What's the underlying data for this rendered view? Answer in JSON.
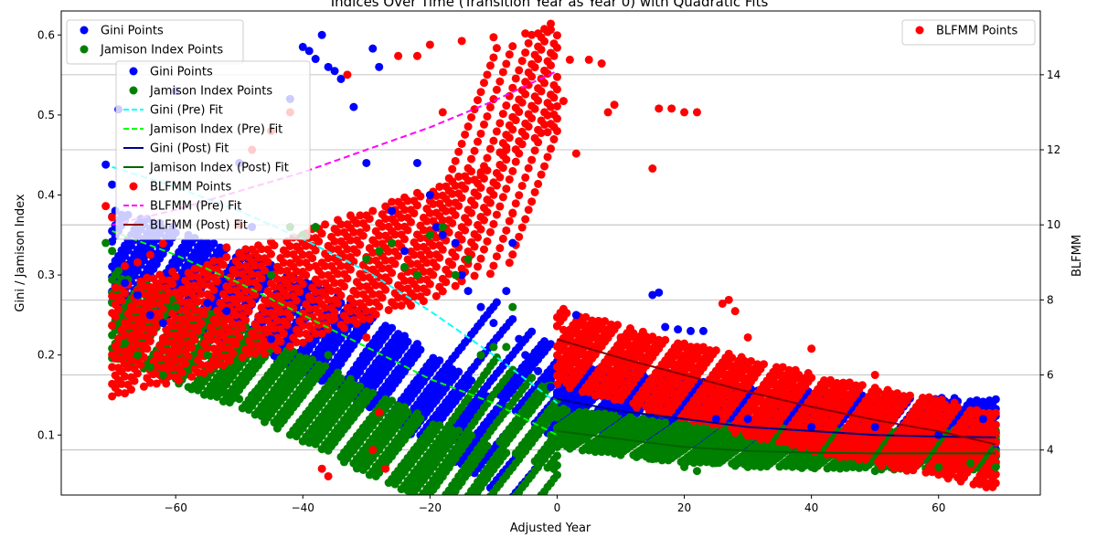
{
  "chart_data": {
    "type": "scatter",
    "title": "Indices Over Time (Transition Year as Year 0) with Quadratic Fits",
    "xlabel": "Adjusted Year",
    "ylabel_left": "Gini / Jamison Index",
    "ylabel_right": "BLFMM",
    "xlim": [
      -78,
      76
    ],
    "ylim_left": [
      0.025,
      0.63
    ],
    "ylim_right": [
      2.8,
      15.7
    ],
    "x_ticks": [
      -60,
      -40,
      -20,
      0,
      20,
      40,
      60
    ],
    "x_tick_labels": [
      "−60",
      "−40",
      "−20",
      "0",
      "20",
      "40",
      "60"
    ],
    "y_left_ticks": [
      0.1,
      0.2,
      0.3,
      0.4,
      0.5,
      0.6
    ],
    "y_left_tick_labels": [
      "0.1",
      "0.2",
      "0.3",
      "0.4",
      "0.5",
      "0.6"
    ],
    "y_right_ticks": [
      4,
      6,
      8,
      10,
      12,
      14
    ],
    "y_right_tick_labels": [
      "4",
      "6",
      "8",
      "10",
      "12",
      "14"
    ],
    "grid": "horizontal lines at right-axis ticks",
    "colors": {
      "gini": "#0000ff",
      "jamison": "#008000",
      "blfmm": "#ff0000",
      "gini_pre_fit": "#00ffff",
      "jamison_pre_fit": "#00ff00",
      "gini_post_fit": "#00008b",
      "jamison_post_fit": "#006400",
      "blfmm_pre_fit": "#ff00ff",
      "blfmm_post_fit": "#8b0000"
    },
    "legend_top_left": {
      "placement": "top-left",
      "entries": [
        {
          "label": "Gini Points",
          "marker": "point",
          "color": "#0000ff"
        },
        {
          "label": "Jamison Index Points",
          "marker": "point",
          "color": "#008000"
        }
      ]
    },
    "legend_top_right": {
      "placement": "top-right",
      "entries": [
        {
          "label": "BLFMM Points",
          "marker": "point",
          "color": "#ff0000"
        }
      ]
    },
    "legend_combined": {
      "placement": "upper-left",
      "entries": [
        {
          "label": "Gini Points",
          "marker": "point",
          "color": "#0000ff"
        },
        {
          "label": "Jamison Index Points",
          "marker": "point",
          "color": "#008000"
        },
        {
          "label": "Gini (Pre) Fit",
          "marker": "dash",
          "color": "#00ffff"
        },
        {
          "label": "Jamison Index (Pre) Fit",
          "marker": "dash",
          "color": "#00ff00"
        },
        {
          "label": "Gini (Post) Fit",
          "marker": "line",
          "color": "#00008b"
        },
        {
          "label": "Jamison Index (Post) Fit",
          "marker": "line",
          "color": "#006400"
        },
        {
          "label": "BLFMM Points",
          "marker": "point",
          "color": "#ff0000"
        },
        {
          "label": "BLFMM (Pre) Fit",
          "marker": "dash",
          "color": "#ff00ff"
        },
        {
          "label": "BLFMM (Post) Fit",
          "marker": "line",
          "color": "#8b0000"
        }
      ]
    },
    "fits": {
      "gini_pre": {
        "axis": "left",
        "x": [
          -70,
          -60,
          -50,
          -40,
          -30,
          -20,
          -10,
          0
        ],
        "y": [
          0.435,
          0.41,
          0.38,
          0.345,
          0.305,
          0.255,
          0.2,
          0.14
        ]
      },
      "jamison_pre": {
        "axis": "left",
        "x": [
          -70,
          -60,
          -50,
          -40,
          -30,
          -20,
          -10,
          0
        ],
        "y": [
          0.355,
          0.325,
          0.29,
          0.25,
          0.21,
          0.17,
          0.14,
          0.1
        ]
      },
      "gini_post": {
        "axis": "left",
        "x": [
          0,
          10,
          20,
          30,
          40,
          50,
          60,
          69
        ],
        "y": [
          0.145,
          0.13,
          0.12,
          0.11,
          0.105,
          0.1,
          0.098,
          0.097
        ]
      },
      "jamison_post": {
        "axis": "left",
        "x": [
          0,
          10,
          20,
          30,
          40,
          50,
          60,
          69
        ],
        "y": [
          0.105,
          0.095,
          0.085,
          0.08,
          0.078,
          0.077,
          0.077,
          0.077
        ]
      },
      "blfmm_pre": {
        "axis": "right",
        "x": [
          -70,
          -60,
          -50,
          -40,
          -30,
          -20,
          -10,
          0
        ],
        "y": [
          10.0,
          10.4,
          10.9,
          11.4,
          12.0,
          12.6,
          13.3,
          14.1
        ]
      },
      "blfmm_post": {
        "axis": "right",
        "x": [
          0,
          10,
          20,
          30,
          40,
          50,
          60,
          69
        ],
        "y": [
          6.95,
          6.45,
          6.0,
          5.55,
          5.15,
          4.8,
          4.5,
          4.15
        ]
      }
    },
    "series": [
      {
        "name": "Gini Points",
        "axis": "left",
        "points": [
          [
            -71,
            0.438
          ],
          [
            -70,
            0.413
          ],
          [
            -69,
            0.507
          ],
          [
            -68,
            0.29
          ],
          [
            -66,
            0.275
          ],
          [
            -64,
            0.25
          ],
          [
            -62,
            0.24
          ],
          [
            -60,
            0.53
          ],
          [
            -58,
            0.35
          ],
          [
            -55,
            0.265
          ],
          [
            -52,
            0.255
          ],
          [
            -50,
            0.44
          ],
          [
            -48,
            0.36
          ],
          [
            -45,
            0.22
          ],
          [
            -42,
            0.52
          ],
          [
            -40,
            0.585
          ],
          [
            -39,
            0.58
          ],
          [
            -38,
            0.57
          ],
          [
            -37,
            0.6
          ],
          [
            -36,
            0.56
          ],
          [
            -35,
            0.555
          ],
          [
            -34,
            0.545
          ],
          [
            -32,
            0.51
          ],
          [
            -30,
            0.44
          ],
          [
            -29,
            0.583
          ],
          [
            -28,
            0.56
          ],
          [
            -26,
            0.38
          ],
          [
            -24,
            0.33
          ],
          [
            -22,
            0.44
          ],
          [
            -20,
            0.4
          ],
          [
            -19,
            0.36
          ],
          [
            -18,
            0.35
          ],
          [
            -16,
            0.34
          ],
          [
            -15,
            0.3
          ],
          [
            -14,
            0.28
          ],
          [
            -12,
            0.26
          ],
          [
            -10,
            0.24
          ],
          [
            -8,
            0.28
          ],
          [
            -7,
            0.34
          ],
          [
            -6,
            0.22
          ],
          [
            -5,
            0.2
          ],
          [
            -4,
            0.19
          ],
          [
            -3,
            0.18
          ],
          [
            -2,
            0.17
          ],
          [
            -1,
            0.16
          ],
          [
            0,
            0.15
          ],
          [
            3,
            0.25
          ],
          [
            5,
            0.14
          ],
          [
            10,
            0.13
          ],
          [
            15,
            0.275
          ],
          [
            16,
            0.278
          ],
          [
            17,
            0.235
          ],
          [
            19,
            0.232
          ],
          [
            21,
            0.23
          ],
          [
            23,
            0.23
          ],
          [
            25,
            0.12
          ],
          [
            30,
            0.12
          ],
          [
            40,
            0.11
          ],
          [
            50,
            0.11
          ],
          [
            60,
            0.1
          ],
          [
            67,
            0.12
          ],
          [
            69,
            0.09
          ]
        ]
      },
      {
        "name": "Jamison Index Points",
        "axis": "left",
        "points": [
          [
            -71,
            0.34
          ],
          [
            -70,
            0.33
          ],
          [
            -69,
            0.305
          ],
          [
            -68,
            0.215
          ],
          [
            -66,
            0.2
          ],
          [
            -64,
            0.185
          ],
          [
            -62,
            0.175
          ],
          [
            -60,
            0.26
          ],
          [
            -58,
            0.16
          ],
          [
            -55,
            0.2
          ],
          [
            -52,
            0.15
          ],
          [
            -50,
            0.145
          ],
          [
            -48,
            0.15
          ],
          [
            -45,
            0.3
          ],
          [
            -42,
            0.36
          ],
          [
            -40,
            0.35
          ],
          [
            -38,
            0.36
          ],
          [
            -36,
            0.2
          ],
          [
            -34,
            0.13
          ],
          [
            -32,
            0.125
          ],
          [
            -30,
            0.32
          ],
          [
            -28,
            0.33
          ],
          [
            -26,
            0.34
          ],
          [
            -24,
            0.31
          ],
          [
            -22,
            0.3
          ],
          [
            -20,
            0.35
          ],
          [
            -18,
            0.36
          ],
          [
            -16,
            0.3
          ],
          [
            -14,
            0.32
          ],
          [
            -12,
            0.2
          ],
          [
            -10,
            0.21
          ],
          [
            -8,
            0.21
          ],
          [
            -7,
            0.26
          ],
          [
            -5,
            0.12
          ],
          [
            -3,
            0.11
          ],
          [
            -1,
            0.1
          ],
          [
            0,
            0.1
          ],
          [
            2,
            0.095
          ],
          [
            5,
            0.09
          ],
          [
            10,
            0.075
          ],
          [
            15,
            0.07
          ],
          [
            20,
            0.06
          ],
          [
            22,
            0.055
          ],
          [
            25,
            0.065
          ],
          [
            30,
            0.06
          ],
          [
            40,
            0.06
          ],
          [
            50,
            0.055
          ],
          [
            60,
            0.06
          ],
          [
            65,
            0.065
          ],
          [
            69,
            0.06
          ]
        ]
      },
      {
        "name": "BLFMM Points",
        "axis": "right",
        "points": [
          [
            -71,
            10.5
          ],
          [
            -70,
            10.2
          ],
          [
            -68,
            8.9
          ],
          [
            -66,
            9.0
          ],
          [
            -64,
            9.2
          ],
          [
            -62,
            9.5
          ],
          [
            -60,
            8.2
          ],
          [
            -58,
            8.3
          ],
          [
            -55,
            8.7
          ],
          [
            -52,
            9.4
          ],
          [
            -50,
            10.0
          ],
          [
            -48,
            12.0
          ],
          [
            -45,
            12.5
          ],
          [
            -42,
            13.0
          ],
          [
            -40,
            8.7
          ],
          [
            -38,
            8.9
          ],
          [
            -37,
            3.5
          ],
          [
            -36,
            3.3
          ],
          [
            -35,
            7.5
          ],
          [
            -33,
            14.0
          ],
          [
            -30,
            7.0
          ],
          [
            -29,
            4.0
          ],
          [
            -28,
            5.0
          ],
          [
            -27,
            3.5
          ],
          [
            -25,
            14.5
          ],
          [
            -22,
            14.5
          ],
          [
            -20,
            14.8
          ],
          [
            -18,
            13.0
          ],
          [
            -15,
            14.9
          ],
          [
            -13,
            11.2
          ],
          [
            -12,
            11.4
          ],
          [
            -10,
            15.0
          ],
          [
            -8,
            12.0
          ],
          [
            -7,
            10.3
          ],
          [
            -5,
            15.1
          ],
          [
            -3,
            15.1
          ],
          [
            -1,
            15.2
          ],
          [
            0,
            7.3
          ],
          [
            1,
            7.2
          ],
          [
            1,
            13.3
          ],
          [
            2,
            14.4
          ],
          [
            3,
            11.9
          ],
          [
            5,
            14.4
          ],
          [
            7,
            14.3
          ],
          [
            8,
            13.0
          ],
          [
            9,
            13.2
          ],
          [
            10,
            7.0
          ],
          [
            15,
            11.5
          ],
          [
            16,
            13.1
          ],
          [
            18,
            13.1
          ],
          [
            20,
            13.0
          ],
          [
            22,
            13.0
          ],
          [
            26,
            7.9
          ],
          [
            27,
            8.0
          ],
          [
            28,
            7.7
          ],
          [
            30,
            7.0
          ],
          [
            40,
            6.7
          ],
          [
            50,
            6.0
          ],
          [
            55,
            4.0
          ],
          [
            60,
            5.2
          ],
          [
            66,
            5.0
          ],
          [
            69,
            4.2
          ]
        ]
      }
    ]
  }
}
